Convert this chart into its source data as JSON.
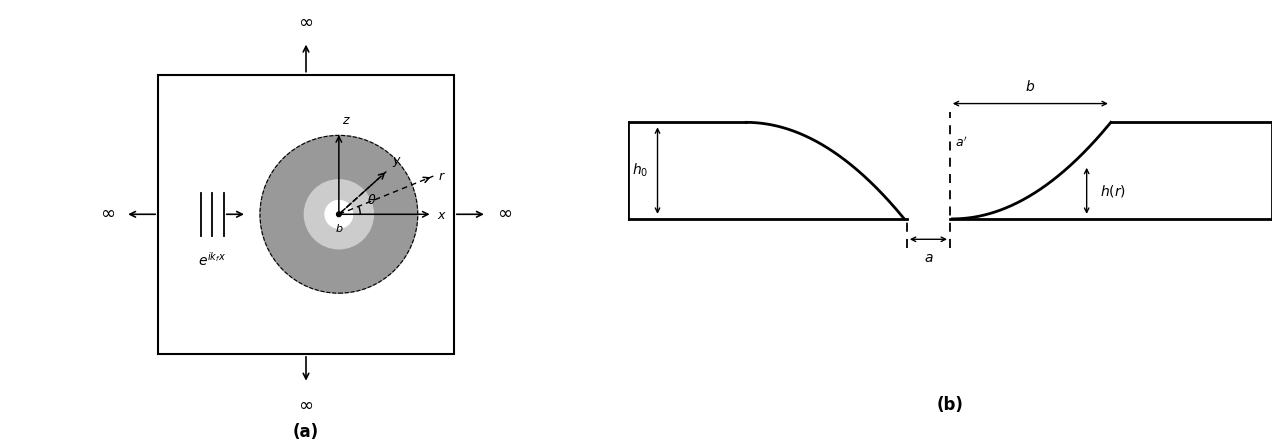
{
  "fig_width": 12.75,
  "fig_height": 4.45,
  "bg_color": "#ffffff",
  "panel_a_label": "(a)",
  "panel_b_label": "(b)",
  "gray_outer": "#999999",
  "gray_inner": "#cccccc",
  "infinity_symbol": "∞"
}
